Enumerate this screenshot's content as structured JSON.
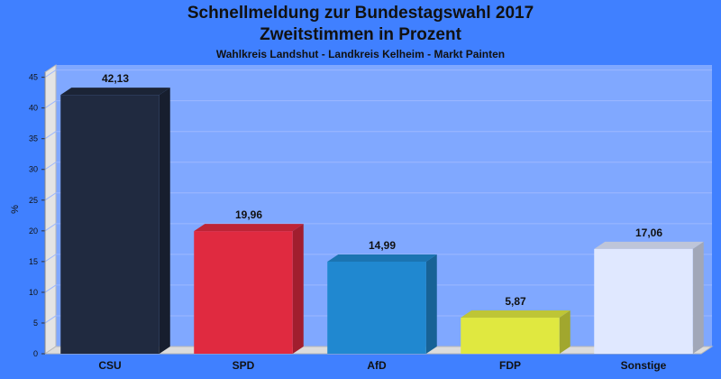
{
  "header": {
    "title_line1": "Schnellmeldung zur Bundestagswahl 2017",
    "title_line2": "Zweitstimmen in Prozent",
    "subtitle": "Wahlkreis Landshut - Landkreis Kelheim - Markt Painten"
  },
  "chart_data": {
    "type": "bar",
    "categories": [
      "CSU",
      "SPD",
      "AfD",
      "FDP",
      "Sonstige"
    ],
    "values": [
      42.13,
      19.96,
      14.99,
      5.87,
      17.06
    ],
    "value_labels": [
      "42,13",
      "19,96",
      "14,99",
      "5,87",
      "17,06"
    ],
    "ylabel": "%",
    "ylim": [
      0,
      47
    ],
    "yticks": [
      0,
      5,
      10,
      15,
      20,
      25,
      30,
      35,
      40,
      45
    ],
    "grid": true,
    "bar_colors": [
      "#202a40",
      "#e02a40",
      "#2088d0",
      "#e0e840",
      "#e0e8ff"
    ],
    "background_color": "#4080ff",
    "plot_color": "#80a8ff"
  }
}
